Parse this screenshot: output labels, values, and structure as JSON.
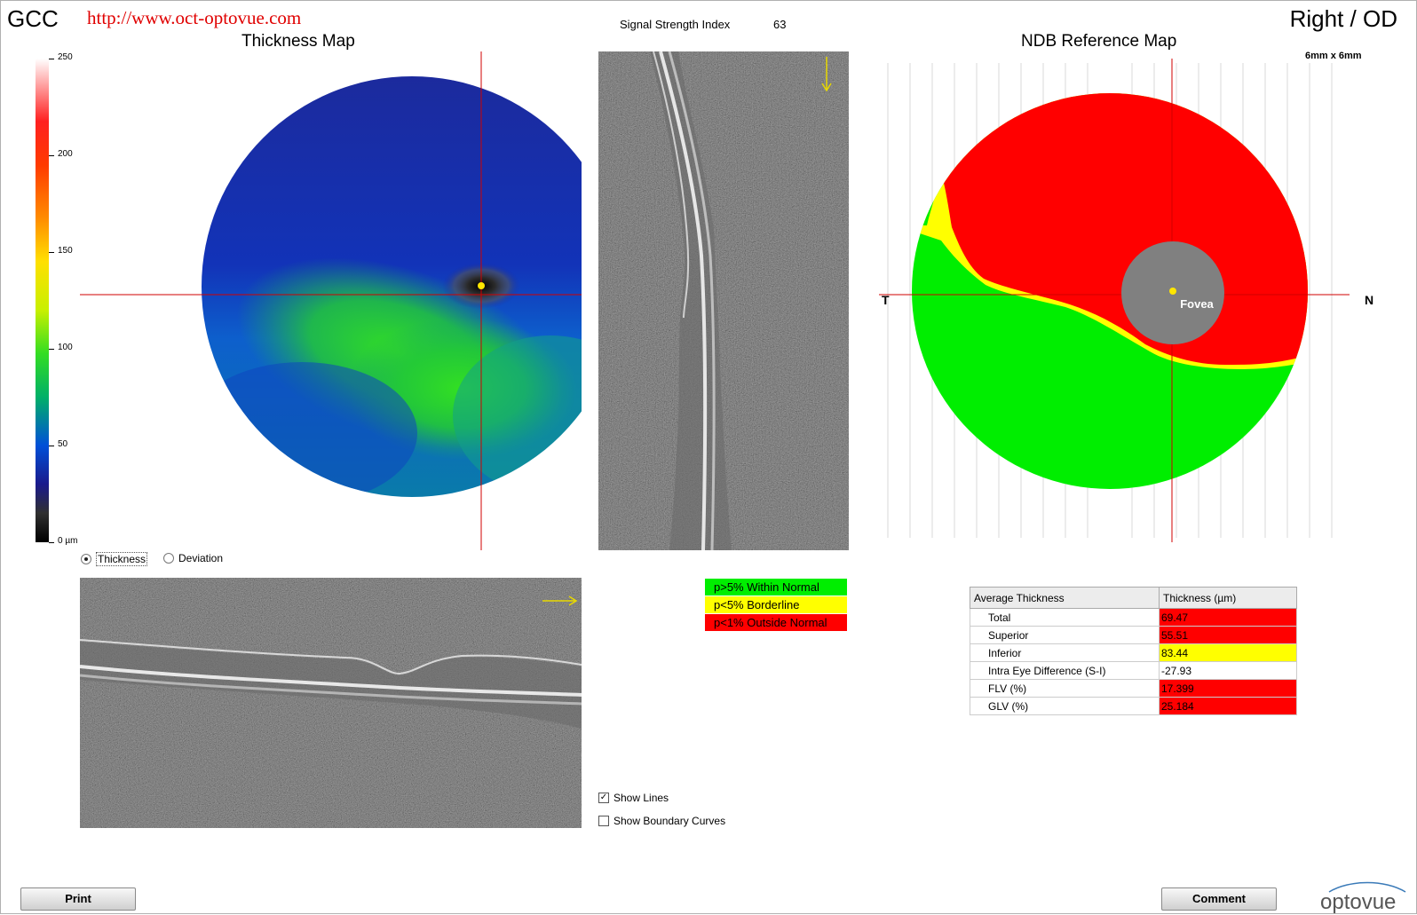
{
  "app": {
    "title": "GCC",
    "url": "http://www.oct-optovue.com",
    "eye": "Right / OD"
  },
  "thickness_map": {
    "title": "Thickness Map",
    "scale_labels": [
      "250",
      "200",
      "150",
      "100",
      "50",
      "0 µm"
    ],
    "mode_options": {
      "thickness": "Thickness",
      "deviation": "Deviation"
    },
    "selected_mode": "Thickness"
  },
  "signal": {
    "label": "Signal Strength Index",
    "value": "63"
  },
  "ndb_map": {
    "title": "NDB Reference Map",
    "scan_size": "6mm x 6mm",
    "temporal": "T",
    "nasal": "N",
    "fovea": "Fovea"
  },
  "legend": [
    {
      "label": "p>5% Within Normal",
      "color": "#00ee00"
    },
    {
      "label": "p<5% Borderline",
      "color": "#ffff00"
    },
    {
      "label": "p<1% Outside Normal",
      "color": "#ff0000"
    }
  ],
  "table": {
    "headers": [
      "Average Thickness",
      "Thickness (µm)"
    ],
    "rows": [
      {
        "label": "Total",
        "value": "69.47",
        "color": "#ff0000"
      },
      {
        "label": "Superior",
        "value": "55.51",
        "color": "#ff0000"
      },
      {
        "label": "Inferior",
        "value": "83.44",
        "color": "#ffff00"
      },
      {
        "label": "Intra Eye Difference (S-I)",
        "value": "-27.93",
        "color": "#ffffff"
      },
      {
        "label": "FLV (%)",
        "value": "17.399",
        "color": "#ff0000"
      },
      {
        "label": "GLV (%)",
        "value": "25.184",
        "color": "#ff0000"
      }
    ]
  },
  "options": {
    "show_lines": "Show Lines",
    "show_lines_checked": true,
    "show_boundary": "Show Boundary Curves",
    "show_boundary_checked": false
  },
  "buttons": {
    "print": "Print",
    "comment": "Comment"
  },
  "logo": "optovue"
}
